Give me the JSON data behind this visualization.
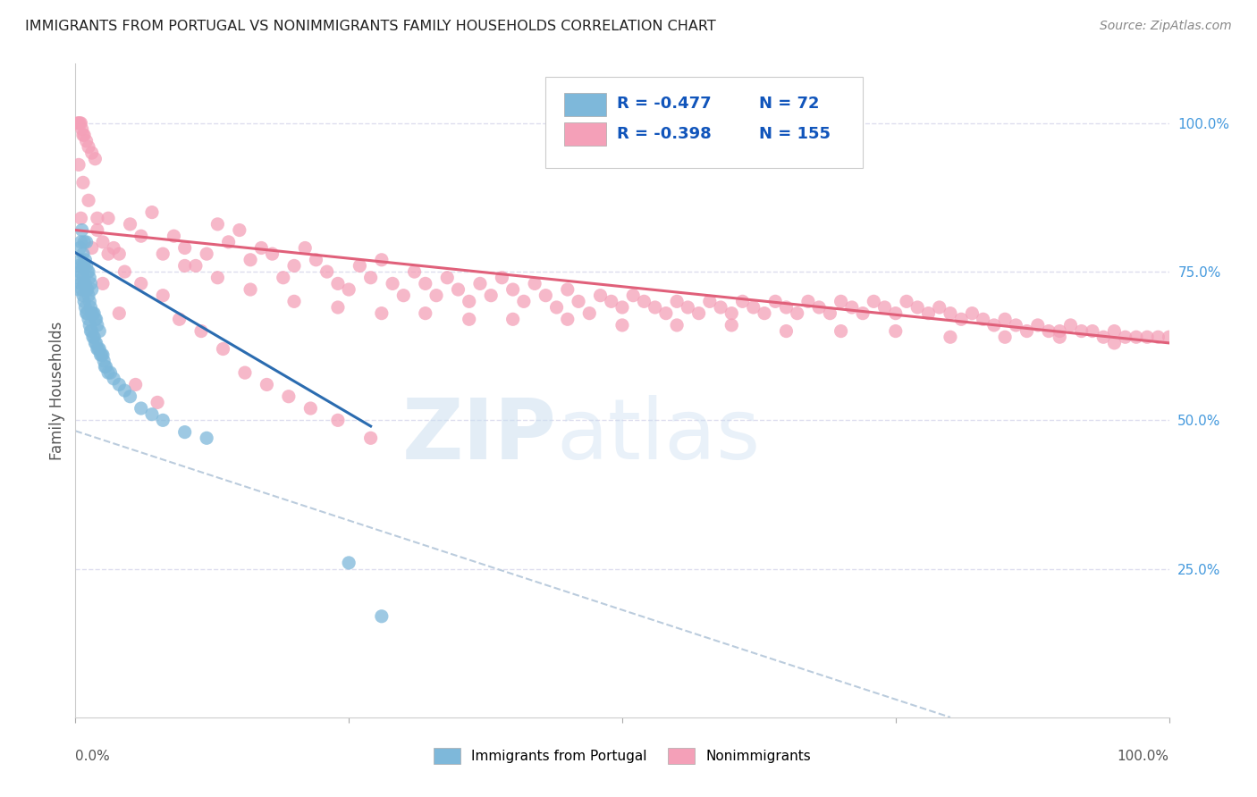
{
  "title": "IMMIGRANTS FROM PORTUGAL VS NONIMMIGRANTS FAMILY HOUSEHOLDS CORRELATION CHART",
  "source": "Source: ZipAtlas.com",
  "ylabel": "Family Households",
  "right_ytick_labels": [
    "100.0%",
    "75.0%",
    "50.0%",
    "25.0%"
  ],
  "right_ytick_values": [
    1.0,
    0.75,
    0.5,
    0.25
  ],
  "legend_blue_label": "Immigrants from Portugal",
  "legend_pink_label": "Nonimmigrants",
  "legend_R_blue": "-0.477",
  "legend_N_blue": "72",
  "legend_R_pink": "-0.398",
  "legend_N_pink": "155",
  "blue_color": "#7EB8DA",
  "blue_line_color": "#2B6CB0",
  "pink_color": "#F4A0B8",
  "pink_line_color": "#E0607A",
  "dashed_line_color": "#BBCCDD",
  "grid_color": "#DDDDEE",
  "title_color": "#222222",
  "source_color": "#888888",
  "right_tick_color": "#4499DD",
  "blue_scatter_x": [
    0.002,
    0.003,
    0.003,
    0.004,
    0.004,
    0.005,
    0.005,
    0.005,
    0.006,
    0.006,
    0.006,
    0.007,
    0.007,
    0.007,
    0.008,
    0.008,
    0.008,
    0.008,
    0.009,
    0.009,
    0.009,
    0.01,
    0.01,
    0.01,
    0.01,
    0.011,
    0.011,
    0.011,
    0.012,
    0.012,
    0.012,
    0.013,
    0.013,
    0.013,
    0.014,
    0.014,
    0.014,
    0.015,
    0.015,
    0.015,
    0.016,
    0.016,
    0.017,
    0.017,
    0.018,
    0.018,
    0.019,
    0.019,
    0.02,
    0.02,
    0.021,
    0.022,
    0.022,
    0.023,
    0.024,
    0.025,
    0.026,
    0.027,
    0.028,
    0.03,
    0.032,
    0.035,
    0.04,
    0.045,
    0.05,
    0.06,
    0.07,
    0.08,
    0.1,
    0.12,
    0.25,
    0.28
  ],
  "blue_scatter_y": [
    0.74,
    0.76,
    0.72,
    0.75,
    0.79,
    0.73,
    0.77,
    0.8,
    0.72,
    0.76,
    0.82,
    0.71,
    0.74,
    0.78,
    0.7,
    0.73,
    0.76,
    0.8,
    0.69,
    0.73,
    0.77,
    0.68,
    0.72,
    0.76,
    0.8,
    0.68,
    0.72,
    0.75,
    0.67,
    0.71,
    0.75,
    0.66,
    0.7,
    0.74,
    0.65,
    0.69,
    0.73,
    0.65,
    0.68,
    0.72,
    0.64,
    0.68,
    0.64,
    0.68,
    0.63,
    0.67,
    0.63,
    0.67,
    0.62,
    0.66,
    0.62,
    0.62,
    0.65,
    0.61,
    0.61,
    0.61,
    0.6,
    0.59,
    0.59,
    0.58,
    0.58,
    0.57,
    0.56,
    0.55,
    0.54,
    0.52,
    0.51,
    0.5,
    0.48,
    0.47,
    0.26,
    0.17
  ],
  "pink_scatter_x": [
    0.002,
    0.003,
    0.004,
    0.005,
    0.006,
    0.007,
    0.008,
    0.01,
    0.012,
    0.015,
    0.018,
    0.02,
    0.025,
    0.03,
    0.035,
    0.04,
    0.05,
    0.06,
    0.07,
    0.08,
    0.09,
    0.1,
    0.11,
    0.12,
    0.13,
    0.14,
    0.15,
    0.16,
    0.17,
    0.18,
    0.19,
    0.2,
    0.21,
    0.22,
    0.23,
    0.24,
    0.25,
    0.26,
    0.27,
    0.28,
    0.29,
    0.3,
    0.31,
    0.32,
    0.33,
    0.34,
    0.35,
    0.36,
    0.37,
    0.38,
    0.39,
    0.4,
    0.41,
    0.42,
    0.43,
    0.44,
    0.45,
    0.46,
    0.47,
    0.48,
    0.49,
    0.5,
    0.51,
    0.52,
    0.53,
    0.54,
    0.55,
    0.56,
    0.57,
    0.58,
    0.59,
    0.6,
    0.61,
    0.62,
    0.63,
    0.64,
    0.65,
    0.66,
    0.67,
    0.68,
    0.69,
    0.7,
    0.71,
    0.72,
    0.73,
    0.74,
    0.75,
    0.76,
    0.77,
    0.78,
    0.79,
    0.8,
    0.81,
    0.82,
    0.83,
    0.84,
    0.85,
    0.86,
    0.87,
    0.88,
    0.89,
    0.9,
    0.91,
    0.92,
    0.93,
    0.94,
    0.95,
    0.96,
    0.97,
    0.98,
    0.99,
    1.0,
    0.003,
    0.007,
    0.012,
    0.02,
    0.03,
    0.045,
    0.06,
    0.08,
    0.1,
    0.13,
    0.16,
    0.2,
    0.24,
    0.28,
    0.32,
    0.36,
    0.4,
    0.45,
    0.5,
    0.55,
    0.6,
    0.65,
    0.7,
    0.75,
    0.8,
    0.85,
    0.9,
    0.95,
    0.005,
    0.015,
    0.025,
    0.04,
    0.055,
    0.075,
    0.095,
    0.115,
    0.135,
    0.155,
    0.175,
    0.195,
    0.215,
    0.24,
    0.27
  ],
  "pink_scatter_y": [
    1.0,
    1.0,
    1.0,
    1.0,
    0.99,
    0.98,
    0.98,
    0.97,
    0.96,
    0.95,
    0.94,
    0.82,
    0.8,
    0.84,
    0.79,
    0.78,
    0.83,
    0.81,
    0.85,
    0.78,
    0.81,
    0.79,
    0.76,
    0.78,
    0.83,
    0.8,
    0.82,
    0.77,
    0.79,
    0.78,
    0.74,
    0.76,
    0.79,
    0.77,
    0.75,
    0.73,
    0.72,
    0.76,
    0.74,
    0.77,
    0.73,
    0.71,
    0.75,
    0.73,
    0.71,
    0.74,
    0.72,
    0.7,
    0.73,
    0.71,
    0.74,
    0.72,
    0.7,
    0.73,
    0.71,
    0.69,
    0.72,
    0.7,
    0.68,
    0.71,
    0.7,
    0.69,
    0.71,
    0.7,
    0.69,
    0.68,
    0.7,
    0.69,
    0.68,
    0.7,
    0.69,
    0.68,
    0.7,
    0.69,
    0.68,
    0.7,
    0.69,
    0.68,
    0.7,
    0.69,
    0.68,
    0.7,
    0.69,
    0.68,
    0.7,
    0.69,
    0.68,
    0.7,
    0.69,
    0.68,
    0.69,
    0.68,
    0.67,
    0.68,
    0.67,
    0.66,
    0.67,
    0.66,
    0.65,
    0.66,
    0.65,
    0.65,
    0.66,
    0.65,
    0.65,
    0.64,
    0.65,
    0.64,
    0.64,
    0.64,
    0.64,
    0.64,
    0.93,
    0.9,
    0.87,
    0.84,
    0.78,
    0.75,
    0.73,
    0.71,
    0.76,
    0.74,
    0.72,
    0.7,
    0.69,
    0.68,
    0.68,
    0.67,
    0.67,
    0.67,
    0.66,
    0.66,
    0.66,
    0.65,
    0.65,
    0.65,
    0.64,
    0.64,
    0.64,
    0.63,
    0.84,
    0.79,
    0.73,
    0.68,
    0.56,
    0.53,
    0.67,
    0.65,
    0.62,
    0.58,
    0.56,
    0.54,
    0.52,
    0.5,
    0.47
  ],
  "blue_line_x": [
    0.0,
    0.27
  ],
  "blue_line_y": [
    0.782,
    0.49
  ],
  "pink_line_x": [
    0.0,
    1.0
  ],
  "pink_line_y": [
    0.82,
    0.63
  ],
  "dash_line_x": [
    0.0,
    0.8
  ],
  "dash_line_y": [
    0.482,
    0.0
  ],
  "xlim": [
    0.0,
    1.0
  ],
  "ylim": [
    0.0,
    1.1
  ]
}
